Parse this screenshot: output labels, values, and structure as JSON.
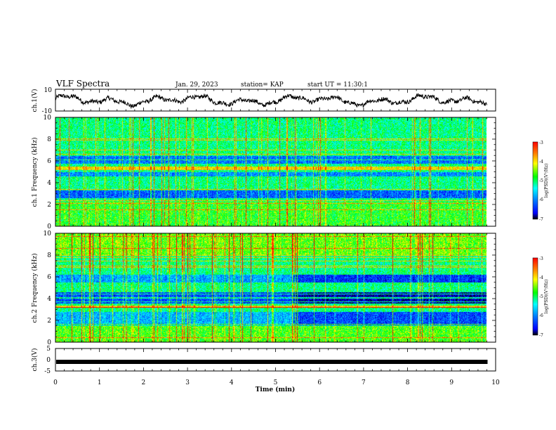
{
  "header": {
    "title": "VLF Spectra",
    "date": "Jan. 29, 2023",
    "station": "station= KAP",
    "start": "start UT =  11:30:1"
  },
  "colorbar": {
    "label": "log(PSD)(V²/Hz)",
    "ticks": [
      "-3",
      "-4",
      "-5",
      "-6",
      "-7"
    ],
    "colors": [
      "#ff0000",
      "#ff8000",
      "#ffff00",
      "#00ff00",
      "#00ffff",
      "#0080ff",
      "#0000ff",
      "#000000"
    ]
  },
  "chart_data": [
    {
      "type": "line",
      "ylabel": "ch.1(V)",
      "ylim": [
        -10,
        10
      ],
      "ytick_labels": [
        "10",
        "-10"
      ],
      "xlim": [
        0,
        10
      ],
      "trace": "noisy waveform oscillating about 0 V"
    },
    {
      "type": "heatmap",
      "ylabel": "ch.1 Frequency (kHz)",
      "ylim": [
        0,
        10
      ],
      "ytick_labels": [
        "0",
        "2",
        "4",
        "6",
        "8",
        "10"
      ],
      "xlim": [
        0,
        9.8
      ],
      "zlim": [
        -7,
        -3
      ]
    },
    {
      "type": "heatmap",
      "ylabel": "ch.2 Frequency (kHz)",
      "ylim": [
        0,
        10
      ],
      "ytick_labels": [
        "0",
        "2",
        "4",
        "6",
        "8",
        "10"
      ],
      "xlim": [
        0,
        9.8
      ],
      "zlim": [
        -7,
        -3
      ]
    },
    {
      "type": "line",
      "ylabel": "ch.3(V)",
      "ylim": [
        -5,
        5
      ],
      "ytick_labels": [
        "5",
        "0",
        "-5"
      ],
      "xlim": [
        0,
        9.8
      ],
      "value": -1.0,
      "xlabel": "Time (min)",
      "xtick_labels": [
        "0",
        "1",
        "2",
        "3",
        "4",
        "5",
        "6",
        "7",
        "8",
        "9",
        "10"
      ]
    }
  ]
}
